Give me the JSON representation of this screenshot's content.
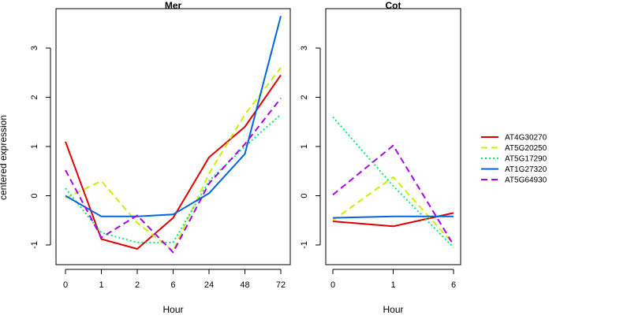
{
  "chart_data": [
    {
      "type": "line",
      "title": "Mer",
      "xlabel": "Hour",
      "ylabel": "centered expression",
      "categories": [
        "0",
        "1",
        "2",
        "6",
        "24",
        "48",
        "72"
      ],
      "ylim": [
        -1.4,
        3.8
      ],
      "yticks": [
        "-1",
        "0",
        "1",
        "2",
        "3"
      ],
      "series": [
        {
          "name": "AT4G30270",
          "color": "#e00000",
          "dash": "solid",
          "values": [
            1.1,
            -0.88,
            -1.08,
            -0.45,
            0.78,
            1.4,
            2.45
          ]
        },
        {
          "name": "AT5G20250",
          "color": "#ccee00",
          "dash": "dashed",
          "values": [
            -0.05,
            0.3,
            -0.55,
            -1.12,
            0.45,
            1.65,
            2.6
          ]
        },
        {
          "name": "AT5G17290",
          "color": "#00ee66",
          "dash": "dotted",
          "values": [
            0.15,
            -0.75,
            -0.95,
            -0.95,
            0.3,
            1.0,
            1.65
          ]
        },
        {
          "name": "AT1G27320",
          "color": "#0066dd",
          "dash": "solid",
          "values": [
            0.0,
            -0.42,
            -0.42,
            -0.38,
            0.05,
            0.85,
            3.65
          ]
        },
        {
          "name": "AT5G64930",
          "color": "#aa00ee",
          "dash": "dashed",
          "values": [
            0.52,
            -0.85,
            -0.4,
            -1.15,
            0.25,
            1.05,
            1.98
          ]
        }
      ]
    },
    {
      "type": "line",
      "title": "Cot",
      "xlabel": "Hour",
      "ylabel": "",
      "categories": [
        "0",
        "1",
        "6"
      ],
      "ylim": [
        -1.4,
        3.8
      ],
      "yticks": [
        "-1",
        "0",
        "1",
        "2",
        "3"
      ],
      "series": [
        {
          "name": "AT4G30270",
          "color": "#e00000",
          "dash": "solid",
          "values": [
            -0.52,
            -0.62,
            -0.35
          ]
        },
        {
          "name": "AT5G20250",
          "color": "#ccee00",
          "dash": "dashed",
          "values": [
            -0.5,
            0.38,
            -0.98
          ]
        },
        {
          "name": "AT5G17290",
          "color": "#00ee66",
          "dash": "dotted",
          "values": [
            1.6,
            0.2,
            -1.05
          ]
        },
        {
          "name": "AT1G27320",
          "color": "#0066dd",
          "dash": "solid",
          "values": [
            -0.45,
            -0.42,
            -0.42
          ]
        },
        {
          "name": "AT5G64930",
          "color": "#aa00ee",
          "dash": "dashed",
          "values": [
            0.02,
            1.02,
            -1.0
          ]
        }
      ]
    }
  ],
  "legend": {
    "position": "right",
    "entries": [
      {
        "label": "AT4G30270",
        "color": "#e00000",
        "dash": "solid"
      },
      {
        "label": "AT5G20250",
        "color": "#ccee00",
        "dash": "dashed"
      },
      {
        "label": "AT5G17290",
        "color": "#00ee66",
        "dash": "dotted"
      },
      {
        "label": "AT1G27320",
        "color": "#0066dd",
        "dash": "solid"
      },
      {
        "label": "AT5G64930",
        "color": "#aa00ee",
        "dash": "dashed"
      }
    ]
  }
}
